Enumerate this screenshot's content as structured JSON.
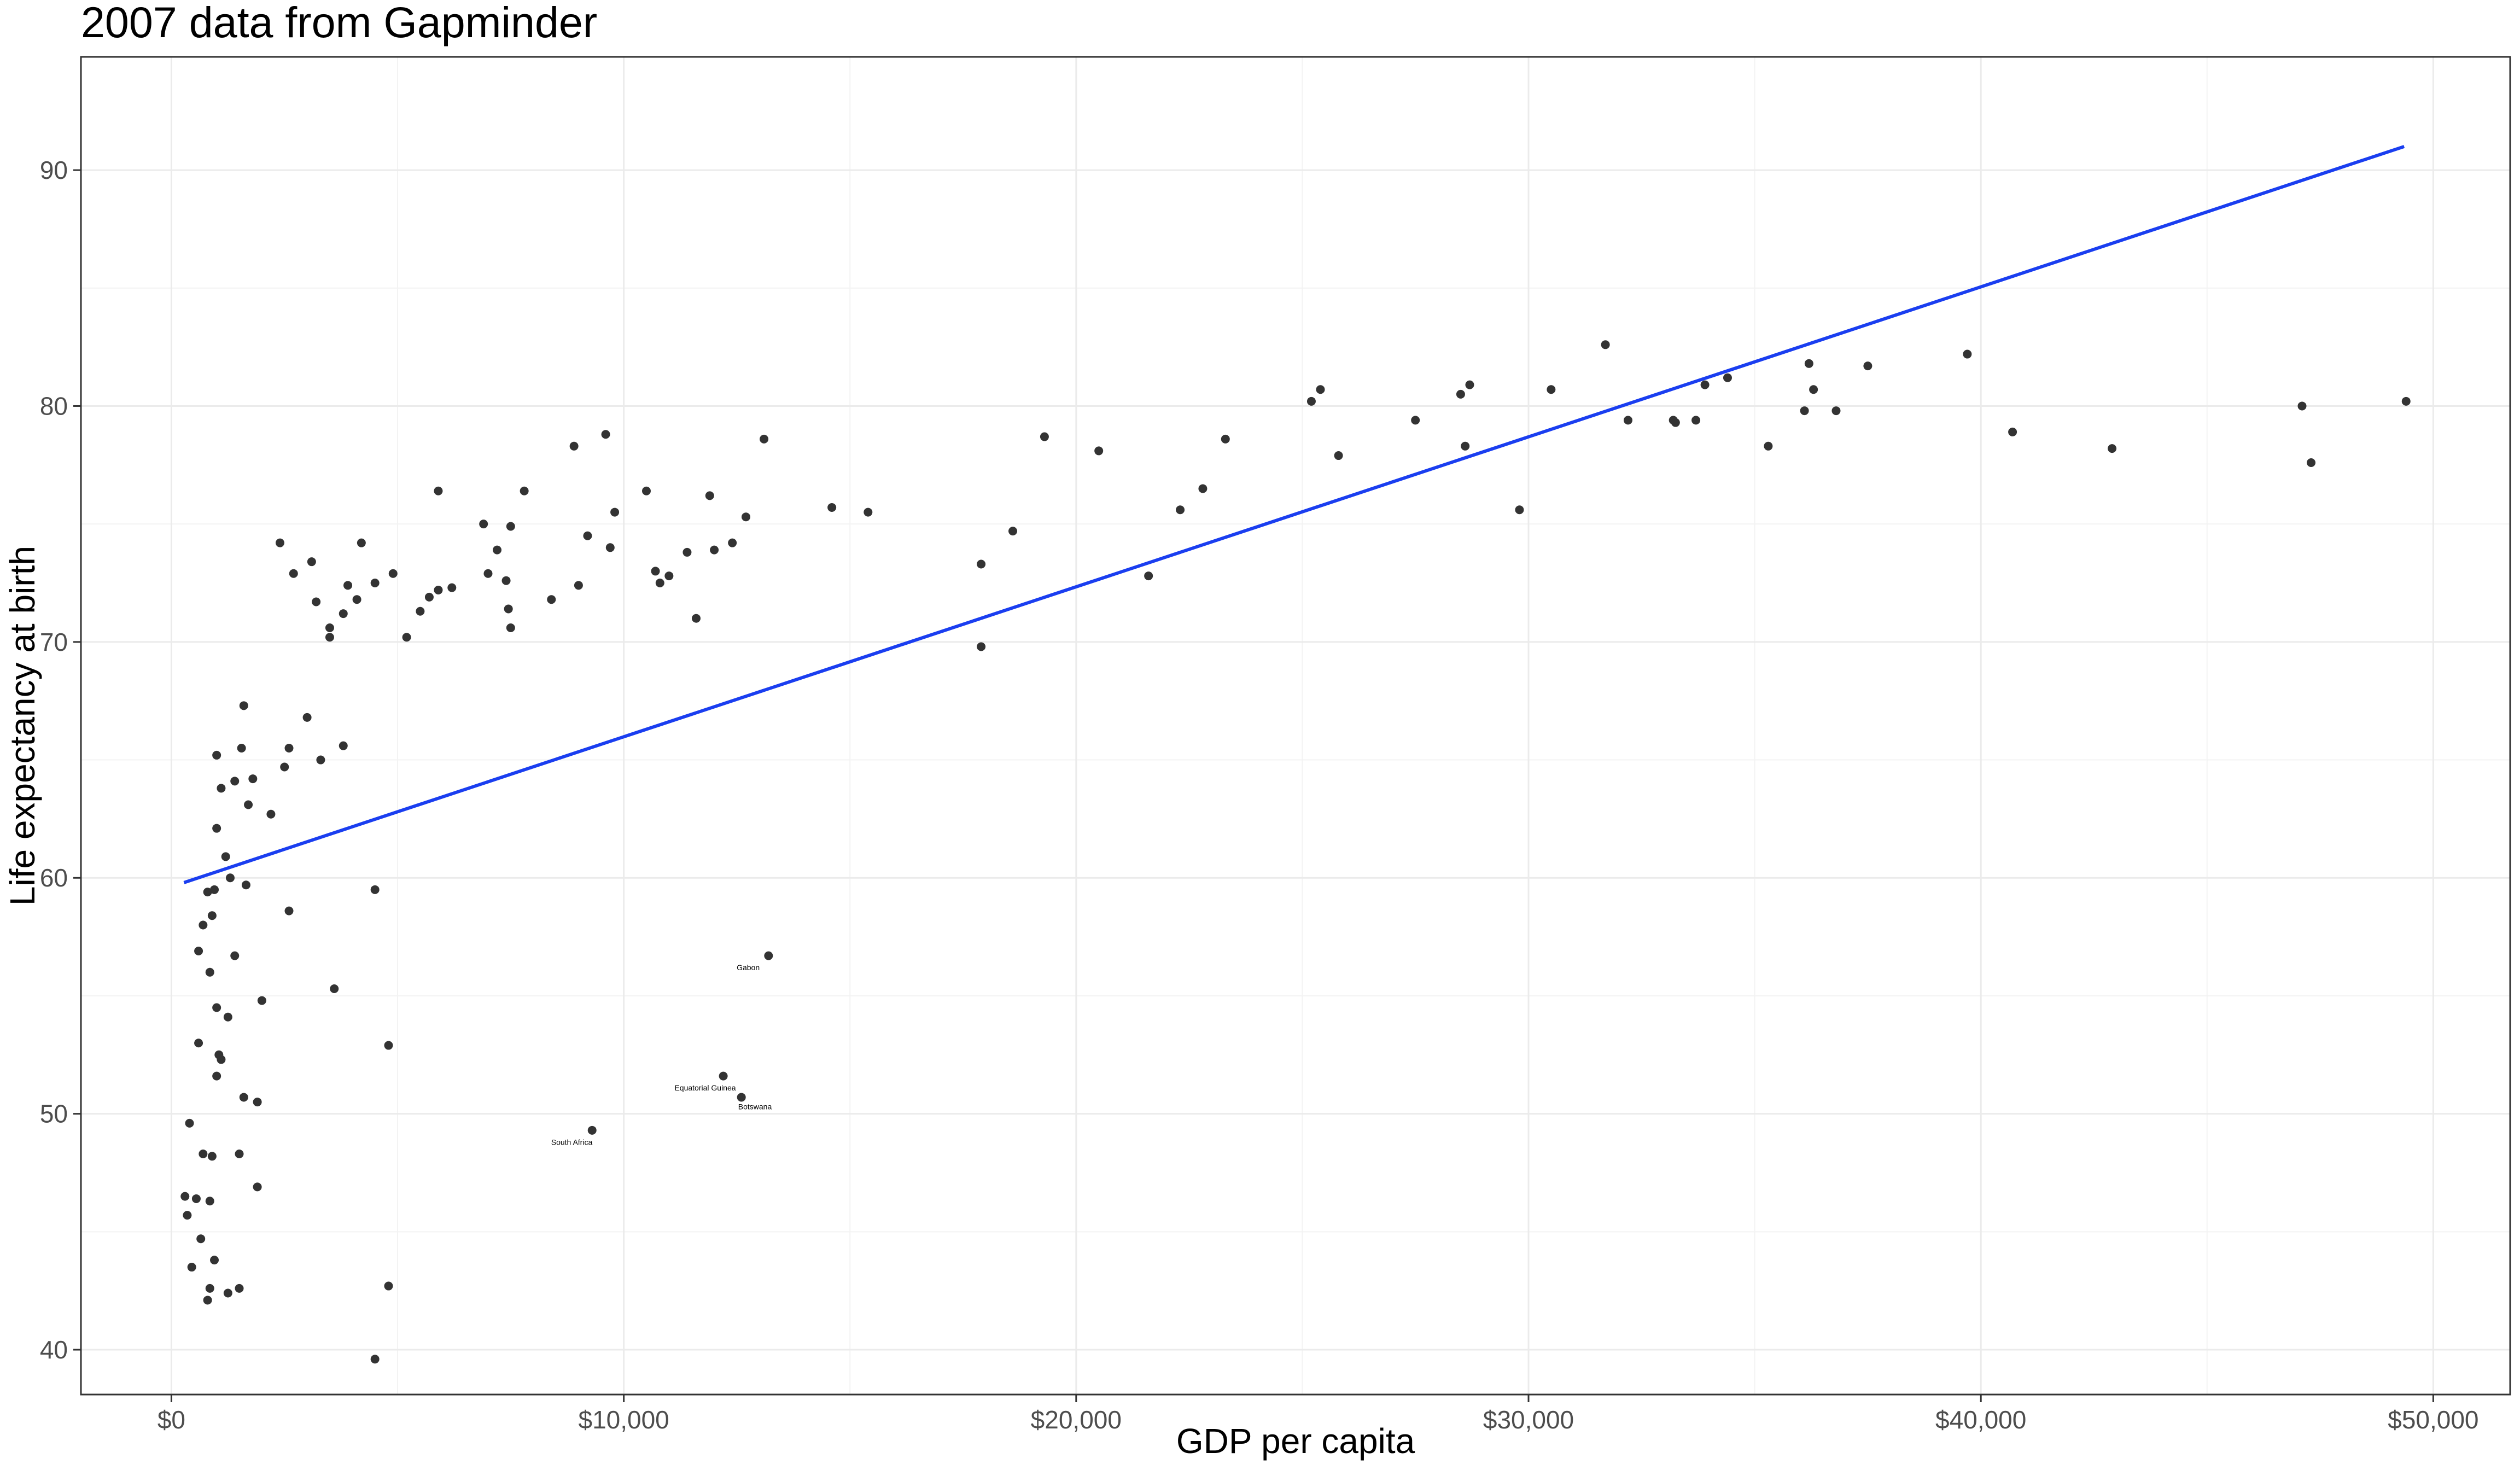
{
  "chart_data": {
    "type": "scatter",
    "title": "2007 data from Gapminder",
    "xlabel": "GDP per capita",
    "ylabel": "Life expectancy at birth",
    "xlim": [
      -2000,
      51700
    ],
    "ylim": [
      38.1,
      94.8
    ],
    "x_ticks": [
      0,
      10000,
      20000,
      30000,
      40000,
      50000
    ],
    "x_tick_labels": [
      "$0",
      "$10,000",
      "$20,000",
      "$30,000",
      "$40,000",
      "$50,000"
    ],
    "y_ticks": [
      40,
      50,
      60,
      70,
      80,
      90
    ],
    "y_tick_labels": [
      "40",
      "50",
      "60",
      "70",
      "80",
      "90"
    ],
    "grid": true,
    "legend": "none",
    "colors": {
      "points": "#333333",
      "trend_line": "#1a3ef0",
      "grid": "#ebebeb",
      "panel_border": "#333333"
    },
    "trend_line": {
      "x": [
        278,
        49357
      ],
      "y": [
        59.8,
        91.0
      ]
    },
    "points": [
      {
        "x": 10500,
        "y": 76.4
      },
      {
        "x": 7800,
        "y": 76.4
      },
      {
        "x": 8900,
        "y": 78.3
      },
      {
        "x": 9600,
        "y": 78.8
      },
      {
        "x": 9800,
        "y": 75.5
      },
      {
        "x": 9200,
        "y": 74.5
      },
      {
        "x": 9700,
        "y": 74.0
      },
      {
        "x": 9000,
        "y": 72.4
      },
      {
        "x": 8400,
        "y": 71.8
      },
      {
        "x": 7500,
        "y": 74.9
      },
      {
        "x": 7200,
        "y": 73.9
      },
      {
        "x": 6900,
        "y": 75.0
      },
      {
        "x": 7000,
        "y": 72.9
      },
      {
        "x": 7400,
        "y": 72.6
      },
      {
        "x": 7450,
        "y": 71.4
      },
      {
        "x": 7500,
        "y": 70.6
      },
      {
        "x": 6200,
        "y": 72.3
      },
      {
        "x": 5900,
        "y": 72.2
      },
      {
        "x": 5700,
        "y": 71.9
      },
      {
        "x": 5500,
        "y": 71.3
      },
      {
        "x": 5200,
        "y": 70.2
      },
      {
        "x": 4900,
        "y": 72.9
      },
      {
        "x": 4500,
        "y": 72.5
      },
      {
        "x": 4200,
        "y": 74.2
      },
      {
        "x": 4100,
        "y": 71.8
      },
      {
        "x": 3900,
        "y": 72.4
      },
      {
        "x": 3800,
        "y": 71.2
      },
      {
        "x": 3500,
        "y": 70.6
      },
      {
        "x": 3500,
        "y": 70.2
      },
      {
        "x": 3100,
        "y": 73.4
      },
      {
        "x": 3200,
        "y": 71.7
      },
      {
        "x": 2700,
        "y": 72.9
      },
      {
        "x": 2400,
        "y": 74.2
      },
      {
        "x": 5900,
        "y": 76.4
      },
      {
        "x": 10700,
        "y": 73.0
      },
      {
        "x": 10800,
        "y": 72.5
      },
      {
        "x": 11000,
        "y": 72.8
      },
      {
        "x": 11400,
        "y": 73.8
      },
      {
        "x": 11600,
        "y": 71.0
      },
      {
        "x": 11900,
        "y": 76.2
      },
      {
        "x": 12000,
        "y": 73.9
      },
      {
        "x": 12400,
        "y": 74.2
      },
      {
        "x": 12700,
        "y": 75.3
      },
      {
        "x": 13100,
        "y": 78.6
      },
      {
        "x": 14600,
        "y": 75.7
      },
      {
        "x": 15400,
        "y": 75.5
      },
      {
        "x": 17900,
        "y": 73.3
      },
      {
        "x": 17900,
        "y": 69.8
      },
      {
        "x": 18600,
        "y": 74.7
      },
      {
        "x": 19300,
        "y": 78.7
      },
      {
        "x": 20500,
        "y": 78.1
      },
      {
        "x": 21600,
        "y": 72.8
      },
      {
        "x": 22300,
        "y": 75.6
      },
      {
        "x": 22800,
        "y": 76.5
      },
      {
        "x": 23300,
        "y": 78.6
      },
      {
        "x": 25200,
        "y": 80.2
      },
      {
        "x": 25400,
        "y": 80.7
      },
      {
        "x": 25800,
        "y": 77.9
      },
      {
        "x": 27500,
        "y": 79.4
      },
      {
        "x": 28500,
        "y": 80.5
      },
      {
        "x": 28600,
        "y": 78.3
      },
      {
        "x": 28700,
        "y": 80.9
      },
      {
        "x": 29800,
        "y": 75.6
      },
      {
        "x": 30500,
        "y": 80.7
      },
      {
        "x": 31700,
        "y": 82.6
      },
      {
        "x": 32200,
        "y": 79.4
      },
      {
        "x": 33200,
        "y": 79.4
      },
      {
        "x": 33250,
        "y": 79.3
      },
      {
        "x": 33700,
        "y": 79.4
      },
      {
        "x": 33900,
        "y": 80.9
      },
      {
        "x": 34400,
        "y": 81.2
      },
      {
        "x": 35300,
        "y": 78.3
      },
      {
        "x": 36100,
        "y": 79.8
      },
      {
        "x": 36200,
        "y": 81.8
      },
      {
        "x": 36300,
        "y": 80.7
      },
      {
        "x": 36800,
        "y": 79.8
      },
      {
        "x": 37500,
        "y": 81.7
      },
      {
        "x": 39700,
        "y": 82.2
      },
      {
        "x": 40700,
        "y": 78.9
      },
      {
        "x": 42900,
        "y": 78.2
      },
      {
        "x": 47100,
        "y": 80.0
      },
      {
        "x": 47300,
        "y": 77.6
      },
      {
        "x": 49400,
        "y": 80.2
      },
      {
        "x": 13200,
        "y": 56.7
      },
      {
        "x": 12200,
        "y": 51.6
      },
      {
        "x": 12600,
        "y": 50.7
      },
      {
        "x": 9300,
        "y": 49.3
      },
      {
        "x": 4500,
        "y": 59.5
      },
      {
        "x": 3800,
        "y": 65.6
      },
      {
        "x": 3600,
        "y": 55.3
      },
      {
        "x": 3000,
        "y": 66.8
      },
      {
        "x": 2600,
        "y": 65.5
      },
      {
        "x": 2500,
        "y": 64.7
      },
      {
        "x": 2200,
        "y": 62.7
      },
      {
        "x": 2000,
        "y": 54.8
      },
      {
        "x": 1900,
        "y": 50.5
      },
      {
        "x": 1900,
        "y": 46.9
      },
      {
        "x": 1800,
        "y": 64.2
      },
      {
        "x": 1700,
        "y": 63.1
      },
      {
        "x": 1650,
        "y": 59.7
      },
      {
        "x": 1600,
        "y": 67.3
      },
      {
        "x": 1550,
        "y": 65.5
      },
      {
        "x": 1400,
        "y": 64.1
      },
      {
        "x": 1400,
        "y": 56.7
      },
      {
        "x": 1300,
        "y": 60.0
      },
      {
        "x": 1250,
        "y": 54.1
      },
      {
        "x": 1200,
        "y": 60.9
      },
      {
        "x": 1100,
        "y": 63.8
      },
      {
        "x": 1050,
        "y": 52.5
      },
      {
        "x": 1000,
        "y": 65.2
      },
      {
        "x": 1000,
        "y": 62.1
      },
      {
        "x": 950,
        "y": 59.5
      },
      {
        "x": 900,
        "y": 58.4
      },
      {
        "x": 850,
        "y": 56.0
      },
      {
        "x": 800,
        "y": 59.4
      },
      {
        "x": 700,
        "y": 58.0
      },
      {
        "x": 600,
        "y": 56.9
      },
      {
        "x": 600,
        "y": 53.0
      },
      {
        "x": 1000,
        "y": 54.5
      },
      {
        "x": 1000,
        "y": 51.6
      },
      {
        "x": 1100,
        "y": 52.3
      },
      {
        "x": 1600,
        "y": 50.7
      },
      {
        "x": 1500,
        "y": 48.3
      },
      {
        "x": 900,
        "y": 48.2
      },
      {
        "x": 700,
        "y": 48.3
      },
      {
        "x": 400,
        "y": 49.6
      },
      {
        "x": 300,
        "y": 46.5
      },
      {
        "x": 350,
        "y": 45.7
      },
      {
        "x": 550,
        "y": 46.4
      },
      {
        "x": 850,
        "y": 46.3
      },
      {
        "x": 650,
        "y": 44.7
      },
      {
        "x": 450,
        "y": 43.5
      },
      {
        "x": 950,
        "y": 43.8
      },
      {
        "x": 850,
        "y": 42.6
      },
      {
        "x": 800,
        "y": 42.1
      },
      {
        "x": 1250,
        "y": 42.4
      },
      {
        "x": 1500,
        "y": 42.6
      },
      {
        "x": 4800,
        "y": 42.7
      },
      {
        "x": 4500,
        "y": 39.6
      },
      {
        "x": 4800,
        "y": 52.9
      },
      {
        "x": 2600,
        "y": 58.6
      },
      {
        "x": 3300,
        "y": 65.0
      }
    ],
    "annotations": [
      {
        "label": "Gabon",
        "x": 12750,
        "y": 56.2
      },
      {
        "label": "Equatorial Guinea",
        "x": 11800,
        "y": 51.1
      },
      {
        "label": "Botswana",
        "x": 12900,
        "y": 50.3
      },
      {
        "label": "South Africa",
        "x": 8850,
        "y": 48.8
      }
    ]
  }
}
